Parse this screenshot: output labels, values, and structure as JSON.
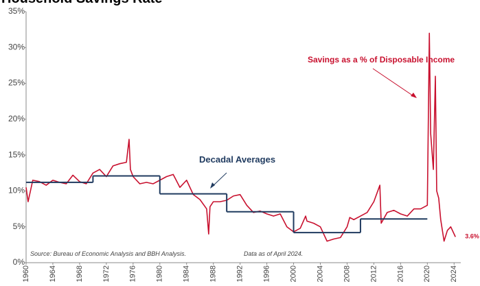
{
  "chart_data": {
    "type": "line",
    "title": "Household Savings Rate",
    "xlim": [
      1960,
      2025
    ],
    "xticks": [
      1960,
      1964,
      1968,
      1972,
      1976,
      1980,
      1984,
      1988,
      1992,
      1996,
      2000,
      2004,
      2008,
      2012,
      2016,
      2020,
      2024
    ],
    "ylim": [
      0,
      35
    ],
    "yticks": [
      {
        "value": 0,
        "label": "0%"
      },
      {
        "value": 5,
        "label": "5%"
      },
      {
        "value": 10,
        "label": "10%"
      },
      {
        "value": 15,
        "label": "15%"
      },
      {
        "value": 20,
        "label": "20%"
      },
      {
        "value": 25,
        "label": "25%"
      },
      {
        "value": 30,
        "label": "30%"
      },
      {
        "value": 35,
        "label": "35%"
      }
    ],
    "grid": false,
    "series": [
      {
        "name": "Savings as a % of Disposable Income",
        "color": "#c8102e",
        "x": [
          1960,
          1960.3,
          1961,
          1962,
          1963,
          1964,
          1965,
          1966,
          1967,
          1968,
          1969,
          1970,
          1971,
          1972,
          1973,
          1974,
          1975,
          1975.4,
          1975.6,
          1976,
          1977,
          1978,
          1979,
          1980,
          1981,
          1982,
          1983,
          1984,
          1985,
          1986,
          1987,
          1987.3,
          1987.5,
          1988,
          1989,
          1990,
          1991,
          1992,
          1993,
          1994,
          1995,
          1996,
          1997,
          1998,
          1999,
          2000,
          2001,
          2001.8,
          2002,
          2003,
          2004,
          2005,
          2006,
          2007,
          2008,
          2008.4,
          2009,
          2010,
          2011,
          2012,
          2012.9,
          2013.1,
          2014,
          2015,
          2016,
          2017,
          2018,
          2019,
          2020,
          2020.3,
          2020.5,
          2020.9,
          2021.2,
          2021.4,
          2021.7,
          2022,
          2022.5,
          2023,
          2023.5,
          2024.2
        ],
        "values": [
          10.5,
          8.5,
          11.5,
          11.3,
          10.8,
          11.5,
          11.2,
          11.0,
          12.2,
          11.3,
          11.0,
          12.5,
          13.0,
          12.0,
          13.5,
          13.8,
          14.0,
          17.2,
          13.0,
          12.0,
          11.0,
          11.2,
          11.0,
          11.5,
          12.0,
          12.3,
          10.5,
          11.5,
          9.5,
          8.8,
          7.5,
          4.0,
          7.8,
          8.5,
          8.5,
          8.7,
          9.3,
          9.5,
          8.0,
          7.0,
          7.2,
          6.8,
          6.5,
          6.8,
          5.0,
          4.3,
          4.8,
          6.5,
          5.8,
          5.5,
          5.0,
          3.0,
          3.3,
          3.5,
          5.0,
          6.3,
          6.0,
          6.5,
          7.0,
          8.5,
          10.8,
          5.5,
          7.0,
          7.3,
          6.8,
          6.5,
          7.5,
          7.5,
          8.0,
          32.0,
          18.0,
          13.0,
          26.0,
          10.0,
          9.0,
          6.0,
          3.0,
          4.5,
          5.0,
          3.6
        ],
        "end_label": "3.6%"
      },
      {
        "name": "Decadal Averages",
        "color": "#1f3a5f",
        "edges": [
          1960,
          1970,
          1980,
          1990,
          2000,
          2010,
          2020
        ],
        "values": [
          11.2,
          12.1,
          9.6,
          7.1,
          4.2,
          6.1
        ]
      }
    ],
    "annotations": [
      "Source: Bureau of Economic Analysis and BBH Analysis.",
      "Data as of April 2024."
    ]
  }
}
